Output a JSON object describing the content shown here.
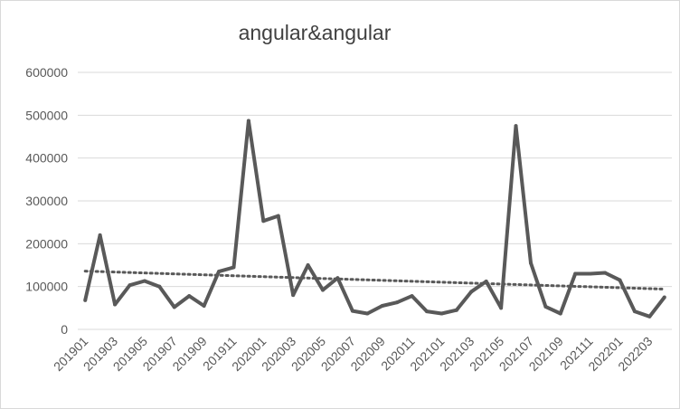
{
  "chart_data": {
    "type": "line",
    "title": "angular&angular",
    "xlabel": "",
    "ylabel": "",
    "ylim": [
      0,
      600000
    ],
    "yticks": [
      0,
      100000,
      200000,
      300000,
      400000,
      500000,
      600000
    ],
    "grid": "horizontal",
    "legend": "none",
    "x": [
      "201901",
      "201902",
      "201903",
      "201904",
      "201905",
      "201906",
      "201907",
      "201908",
      "201909",
      "201910",
      "201911",
      "201912",
      "202001",
      "202002",
      "202003",
      "202004",
      "202005",
      "202006",
      "202007",
      "202008",
      "202009",
      "202010",
      "202011",
      "202012",
      "202101",
      "202102",
      "202103",
      "202104",
      "202105",
      "202106",
      "202107",
      "202108",
      "202109",
      "202110",
      "202111",
      "202112",
      "202201",
      "202202",
      "202203",
      "202204"
    ],
    "xtick_labels": [
      "201901",
      "201903",
      "201905",
      "201907",
      "201909",
      "201911",
      "202001",
      "202003",
      "202005",
      "202007",
      "202009",
      "202011",
      "202101",
      "202103",
      "202105",
      "202107",
      "202109",
      "202111",
      "202201",
      "202203"
    ],
    "series": [
      {
        "values": [
          68000,
          220000,
          58000,
          103000,
          113000,
          100000,
          52000,
          78000,
          55000,
          135000,
          145000,
          487000,
          253000,
          265000,
          80000,
          150000,
          92000,
          120000,
          43000,
          37000,
          55000,
          63000,
          78000,
          42000,
          37000,
          45000,
          88000,
          112000,
          50000,
          475000,
          155000,
          53000,
          37000,
          130000,
          130000,
          132000,
          115000,
          42000,
          30000,
          75000
        ],
        "color": "#595959"
      }
    ],
    "trendline": {
      "type": "linear",
      "style": "dotted",
      "color": "#595959",
      "start": 136000,
      "end": 94000
    }
  }
}
